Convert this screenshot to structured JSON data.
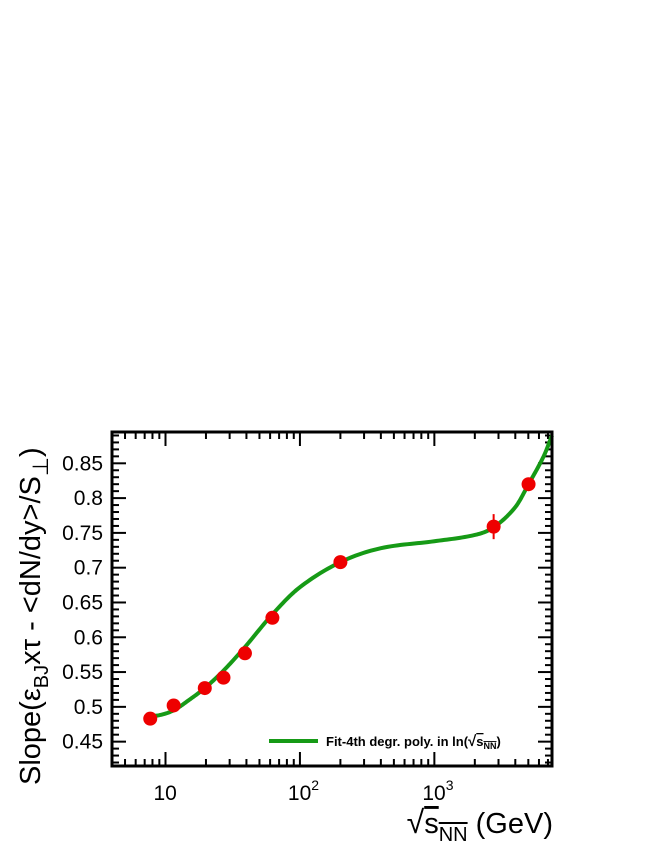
{
  "chart_data": {
    "type": "scatter",
    "x_scale": "log",
    "xlim": [
      4,
      7500
    ],
    "ylim": [
      0.415,
      0.895
    ],
    "x_ticks": [
      {
        "value": 10,
        "base": "10",
        "exp": ""
      },
      {
        "value": 100,
        "base": "10",
        "exp": "2"
      },
      {
        "value": 1000,
        "base": "10",
        "exp": "3"
      }
    ],
    "y_ticks": [
      {
        "value": 0.45,
        "label": "0.45"
      },
      {
        "value": 0.5,
        "label": "0.5"
      },
      {
        "value": 0.55,
        "label": "0.55"
      },
      {
        "value": 0.6,
        "label": "0.6"
      },
      {
        "value": 0.65,
        "label": "0.65"
      },
      {
        "value": 0.7,
        "label": "0.7"
      },
      {
        "value": 0.75,
        "label": "0.75"
      },
      {
        "value": 0.8,
        "label": "0.8"
      },
      {
        "value": 0.85,
        "label": "0.85"
      }
    ],
    "xlabel": {
      "root": "√",
      "main": "s",
      "sub": "NN",
      "unit": " (GeV)"
    },
    "ylabel": {
      "p1": "Slope(",
      "eps": "ε",
      "sub1": "BJ",
      "p2": "xτ - <dN/dy>/S",
      "sub2": "⊥",
      "p3": ")"
    },
    "points": [
      {
        "x": 7.7,
        "y": 0.483,
        "err": 0.004
      },
      {
        "x": 11.5,
        "y": 0.502,
        "err": 0.004
      },
      {
        "x": 19.6,
        "y": 0.527,
        "err": 0.004
      },
      {
        "x": 27,
        "y": 0.542,
        "err": 0.004
      },
      {
        "x": 39,
        "y": 0.577,
        "err": 0.004
      },
      {
        "x": 62.4,
        "y": 0.628,
        "err": 0.005
      },
      {
        "x": 200,
        "y": 0.708,
        "err": 0.005
      },
      {
        "x": 2760,
        "y": 0.759,
        "err": 0.018
      },
      {
        "x": 5020,
        "y": 0.82,
        "err": 0.006
      }
    ],
    "fit": {
      "x": [
        7.7,
        9,
        11.5,
        15,
        19.6,
        27,
        39,
        62.4,
        100,
        200,
        400,
        1000,
        2000,
        2760,
        4000,
        5020,
        6500,
        7500
      ],
      "y": [
        0.487,
        0.488,
        0.495,
        0.51,
        0.527,
        0.552,
        0.586,
        0.633,
        0.672,
        0.708,
        0.728,
        0.738,
        0.747,
        0.758,
        0.787,
        0.82,
        0.86,
        0.89
      ]
    },
    "legend": {
      "label": "Fit-4th degr. poly. in ln(",
      "root": "√",
      "main": "s",
      "sub": "NN",
      "close": ")",
      "position": "bottom-right"
    },
    "colors": {
      "points": "#ee0000",
      "fit": "#169a16",
      "axes": "#000000"
    }
  }
}
